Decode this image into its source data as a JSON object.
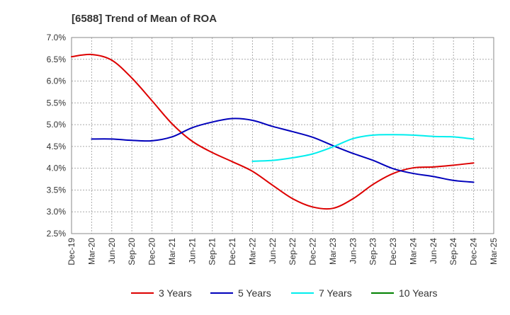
{
  "chart_data": {
    "type": "line",
    "title": "[6588]  Trend of Mean of ROA",
    "xlabel": "",
    "ylabel": "",
    "ylim": [
      2.5,
      7.0
    ],
    "y_ticks": [
      "7.0%",
      "6.5%",
      "6.0%",
      "5.5%",
      "5.0%",
      "4.5%",
      "4.0%",
      "3.5%",
      "3.0%",
      "2.5%"
    ],
    "x_categories": [
      "Dec-19",
      "Mar-20",
      "Jun-20",
      "Sep-20",
      "Dec-20",
      "Mar-21",
      "Jun-21",
      "Sep-21",
      "Dec-21",
      "Mar-22",
      "Jun-22",
      "Sep-22",
      "Dec-22",
      "Mar-23",
      "Jun-23",
      "Sep-23",
      "Dec-23",
      "Mar-24",
      "Jun-24",
      "Sep-24",
      "Dec-24",
      "Mar-25"
    ],
    "grid": true,
    "legend_position": "bottom",
    "series": [
      {
        "name": "3 Years",
        "color": "#dd0000",
        "values": [
          6.56,
          6.61,
          6.48,
          6.07,
          5.55,
          5.02,
          4.62,
          4.36,
          4.15,
          3.93,
          3.61,
          3.3,
          3.11,
          3.08,
          3.3,
          3.63,
          3.88,
          4.01,
          4.03,
          4.07,
          4.12,
          null
        ]
      },
      {
        "name": "5 Years",
        "color": "#0000bb",
        "values": [
          null,
          4.67,
          4.67,
          4.64,
          4.63,
          4.72,
          4.93,
          5.06,
          5.14,
          5.1,
          4.96,
          4.84,
          4.71,
          4.52,
          4.34,
          4.18,
          3.99,
          3.88,
          3.81,
          3.72,
          3.68,
          null
        ]
      },
      {
        "name": "7 Years",
        "color": "#00eeee",
        "values": [
          null,
          null,
          null,
          null,
          null,
          null,
          null,
          null,
          null,
          4.16,
          4.18,
          4.24,
          4.33,
          4.49,
          4.68,
          4.76,
          4.77,
          4.76,
          4.73,
          4.72,
          4.67,
          null
        ]
      },
      {
        "name": "10 Years",
        "color": "#008000",
        "values": [
          null,
          null,
          null,
          null,
          null,
          null,
          null,
          null,
          null,
          null,
          null,
          null,
          null,
          null,
          null,
          null,
          null,
          null,
          null,
          null,
          null,
          null
        ]
      }
    ]
  }
}
